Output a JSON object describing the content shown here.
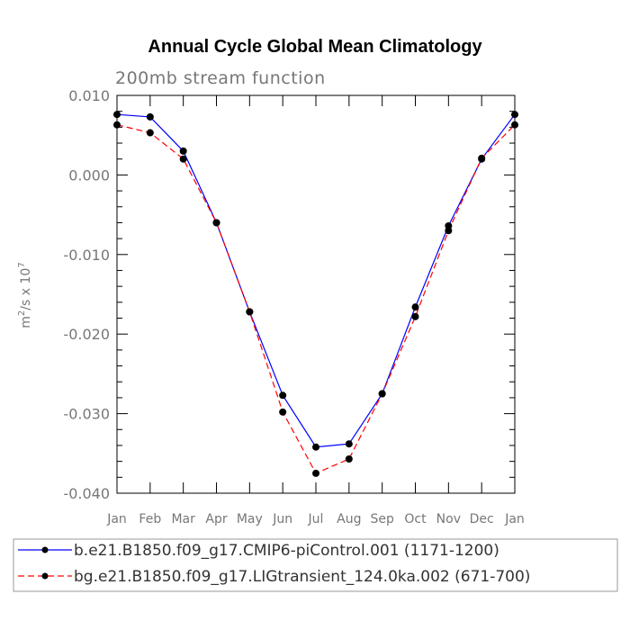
{
  "chart_data": {
    "type": "line",
    "title": "Annual Cycle Global Mean Climatology",
    "subtitle": "200mb stream function",
    "ylabel_main": "m",
    "ylabel_sup": "2",
    "ylabel_mid": "/s x 10",
    "ylabel_exp": "7",
    "xlabel": "",
    "categories": [
      "Jan",
      "Feb",
      "Mar",
      "Apr",
      "May",
      "Jun",
      "Jul",
      "Aug",
      "Sep",
      "Oct",
      "Nov",
      "Dec",
      "Jan"
    ],
    "ylim": [
      -0.04,
      0.01
    ],
    "yticks": [
      0.01,
      0.0,
      -0.01,
      -0.02,
      -0.03,
      -0.04
    ],
    "ytick_labels": [
      "0.010",
      "0.000",
      "-0.010",
      "-0.020",
      "-0.030",
      "-0.040"
    ],
    "series": [
      {
        "name": "b.e21.B1850.f09_g17.CMIP6-piControl.001 (1171-1200)",
        "color": "#0000ff",
        "dash": "solid",
        "values": [
          0.0076,
          0.0073,
          0.003,
          -0.006,
          -0.0172,
          -0.0277,
          -0.0342,
          -0.0338,
          -0.0275,
          -0.0166,
          -0.0064,
          0.002,
          0.0076
        ]
      },
      {
        "name": "bg.e21.B1850.f09_g17.LIGtransient_124.0ka.002 (671-700)",
        "color": "#ff0000",
        "dash": "dashed",
        "values": [
          0.0063,
          0.0053,
          0.002,
          -0.006,
          -0.0172,
          -0.0298,
          -0.0375,
          -0.0357,
          -0.0275,
          -0.0178,
          -0.007,
          0.0021,
          0.0063
        ]
      }
    ],
    "grid": false,
    "legend_position": "bottom"
  }
}
